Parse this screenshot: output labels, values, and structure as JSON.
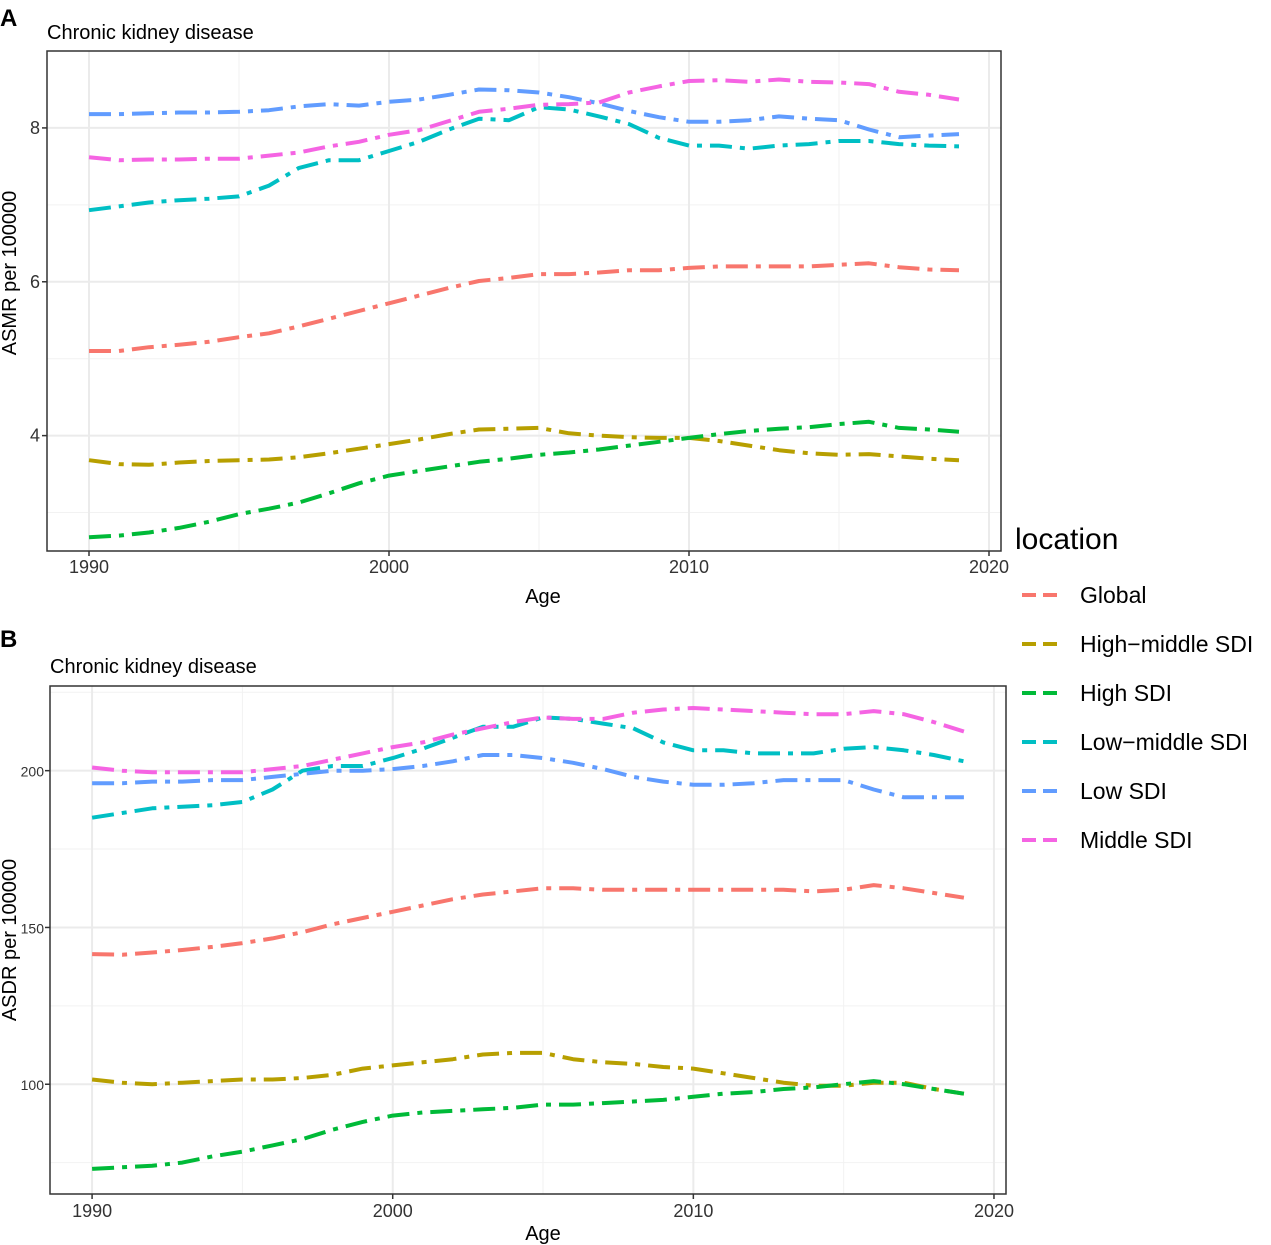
{
  "chart_data": [
    {
      "panel": "A",
      "type": "line",
      "title": "Chronic kidney disease",
      "xlabel": "Age",
      "ylabel": "ASMR per 100000",
      "xlim": [
        1988.6,
        2020.4
      ],
      "ylim": [
        2.5,
        9.0
      ],
      "xticks": [
        1990,
        2000,
        2010,
        2020
      ],
      "yticks": [
        4,
        6,
        8
      ],
      "x": [
        1990,
        1991,
        1992,
        1993,
        1994,
        1995,
        1996,
        1997,
        1998,
        1999,
        2000,
        2001,
        2002,
        2003,
        2004,
        2005,
        2006,
        2007,
        2008,
        2009,
        2010,
        2011,
        2012,
        2013,
        2014,
        2015,
        2016,
        2017,
        2018,
        2019
      ],
      "series": [
        {
          "name": "Global",
          "color": "#F8766D",
          "values": [
            5.1,
            5.1,
            5.15,
            5.18,
            5.22,
            5.28,
            5.33,
            5.42,
            5.52,
            5.62,
            5.72,
            5.82,
            5.92,
            6.01,
            6.05,
            6.1,
            6.1,
            6.12,
            6.15,
            6.15,
            6.18,
            6.2,
            6.2,
            6.2,
            6.2,
            6.22,
            6.24,
            6.19,
            6.16,
            6.15
          ]
        },
        {
          "name": "High−middle SDI",
          "color": "#B79F00",
          "values": [
            3.68,
            3.63,
            3.62,
            3.65,
            3.67,
            3.68,
            3.69,
            3.72,
            3.77,
            3.83,
            3.89,
            3.95,
            4.02,
            4.08,
            4.09,
            4.1,
            4.03,
            4.0,
            3.98,
            3.97,
            3.97,
            3.93,
            3.87,
            3.81,
            3.77,
            3.75,
            3.76,
            3.73,
            3.7,
            3.68
          ]
        },
        {
          "name": "High SDI",
          "color": "#00BA38",
          "values": [
            2.68,
            2.7,
            2.74,
            2.8,
            2.88,
            2.98,
            3.05,
            3.13,
            3.25,
            3.38,
            3.48,
            3.54,
            3.6,
            3.66,
            3.7,
            3.75,
            3.78,
            3.82,
            3.87,
            3.92,
            3.97,
            4.02,
            4.06,
            4.09,
            4.11,
            4.15,
            4.18,
            4.1,
            4.08,
            4.05
          ]
        },
        {
          "name": "Low−middle SDI",
          "color": "#00BFC4",
          "values": [
            6.93,
            6.98,
            7.03,
            7.06,
            7.08,
            7.11,
            7.25,
            7.48,
            7.58,
            7.58,
            7.7,
            7.82,
            7.98,
            8.12,
            8.1,
            8.27,
            8.24,
            8.15,
            8.05,
            7.87,
            7.77,
            7.77,
            7.73,
            7.77,
            7.79,
            7.83,
            7.83,
            7.79,
            7.77,
            7.76
          ]
        },
        {
          "name": "Low SDI",
          "color": "#619CFF",
          "values": [
            8.18,
            8.18,
            8.19,
            8.2,
            8.2,
            8.21,
            8.23,
            8.28,
            8.31,
            8.29,
            8.34,
            8.37,
            8.43,
            8.5,
            8.49,
            8.46,
            8.4,
            8.32,
            8.22,
            8.14,
            8.08,
            8.08,
            8.1,
            8.15,
            8.12,
            8.1,
            7.98,
            7.88,
            7.9,
            7.92
          ]
        },
        {
          "name": "Middle SDI",
          "color": "#F564E3",
          "values": [
            7.62,
            7.58,
            7.59,
            7.59,
            7.6,
            7.6,
            7.64,
            7.68,
            7.76,
            7.82,
            7.91,
            7.97,
            8.09,
            8.21,
            8.25,
            8.3,
            8.31,
            8.33,
            8.46,
            8.54,
            8.61,
            8.62,
            8.6,
            8.63,
            8.6,
            8.59,
            8.57,
            8.47,
            8.43,
            8.37
          ]
        }
      ]
    },
    {
      "panel": "B",
      "type": "line",
      "title": "Chronic kidney disease",
      "xlabel": "Age",
      "ylabel": "ASDR per 100000",
      "xlim": [
        1988.6,
        2020.4
      ],
      "ylim": [
        65,
        227
      ],
      "xticks": [
        1990,
        2000,
        2010,
        2020
      ],
      "yticks": [
        100,
        150,
        200
      ],
      "x": [
        1990,
        1991,
        1992,
        1993,
        1994,
        1995,
        1996,
        1997,
        1998,
        1999,
        2000,
        2001,
        2002,
        2003,
        2004,
        2005,
        2006,
        2007,
        2008,
        2009,
        2010,
        2011,
        2012,
        2013,
        2014,
        2015,
        2016,
        2017,
        2018,
        2019
      ],
      "series": [
        {
          "name": "Global",
          "color": "#F8766D",
          "values": [
            141.5,
            141.3,
            142.0,
            142.8,
            143.8,
            145.0,
            146.5,
            148.5,
            151.0,
            153.0,
            155.0,
            157.0,
            159.0,
            160.5,
            161.5,
            162.5,
            162.5,
            162.0,
            162.0,
            162.0,
            162.0,
            162.0,
            162.0,
            162.0,
            161.5,
            162.0,
            163.5,
            162.5,
            161.0,
            159.5
          ]
        },
        {
          "name": "High−middle SDI",
          "color": "#B79F00",
          "values": [
            101.5,
            100.5,
            100.0,
            100.5,
            101.0,
            101.5,
            101.5,
            102.0,
            103.0,
            105.0,
            106.0,
            107.0,
            108.0,
            109.5,
            110.0,
            110.0,
            108.0,
            107.0,
            106.5,
            105.5,
            105.0,
            103.5,
            102.0,
            100.5,
            99.5,
            99.5,
            100.5,
            100.5,
            98.5,
            97.0
          ]
        },
        {
          "name": "High SDI",
          "color": "#00BA38",
          "values": [
            73.0,
            73.5,
            74.0,
            75.0,
            77.0,
            78.5,
            80.5,
            82.5,
            85.5,
            88.0,
            90.0,
            91.0,
            91.5,
            92.0,
            92.5,
            93.5,
            93.5,
            94.0,
            94.5,
            95.0,
            96.0,
            97.0,
            97.5,
            98.5,
            99.0,
            100.0,
            101.0,
            100.0,
            98.5,
            97.0
          ]
        },
        {
          "name": "Low−middle SDI",
          "color": "#00BFC4",
          "values": [
            185.0,
            186.5,
            188.0,
            188.5,
            189.0,
            190.0,
            194.0,
            200.0,
            201.5,
            201.5,
            204.0,
            207.0,
            210.5,
            214.0,
            214.0,
            217.0,
            216.5,
            215.0,
            213.5,
            209.0,
            206.5,
            206.5,
            205.5,
            205.5,
            205.5,
            207.0,
            207.5,
            206.5,
            205.0,
            203.0
          ]
        },
        {
          "name": "Low SDI",
          "color": "#619CFF",
          "values": [
            196.0,
            196.0,
            196.5,
            196.5,
            197.0,
            197.0,
            198.0,
            199.0,
            200.0,
            200.0,
            200.5,
            201.5,
            203.0,
            205.0,
            205.0,
            204.0,
            202.5,
            200.5,
            198.0,
            196.5,
            195.5,
            195.5,
            196.0,
            197.0,
            197.0,
            197.0,
            194.0,
            191.5,
            191.5,
            191.5
          ]
        },
        {
          "name": "Middle SDI",
          "color": "#F564E3",
          "values": [
            201.0,
            200.0,
            199.5,
            199.5,
            199.5,
            199.5,
            200.5,
            201.5,
            203.5,
            205.5,
            207.5,
            209.0,
            211.5,
            213.5,
            215.5,
            217.0,
            216.5,
            216.5,
            218.5,
            219.5,
            220.0,
            219.5,
            219.0,
            218.5,
            218.0,
            218.0,
            219.0,
            218.0,
            215.5,
            212.5
          ]
        }
      ]
    }
  ],
  "legend": {
    "title": "location",
    "entries": [
      {
        "label": "Global",
        "color": "#F8766D"
      },
      {
        "label": "High−middle SDI",
        "color": "#B79F00"
      },
      {
        "label": "High SDI",
        "color": "#00BA38"
      },
      {
        "label": "Low−middle SDI",
        "color": "#00BFC4"
      },
      {
        "label": "Low SDI",
        "color": "#619CFF"
      },
      {
        "label": "Middle SDI",
        "color": "#F564E3"
      }
    ]
  },
  "panel_letters": [
    "A",
    "B"
  ]
}
